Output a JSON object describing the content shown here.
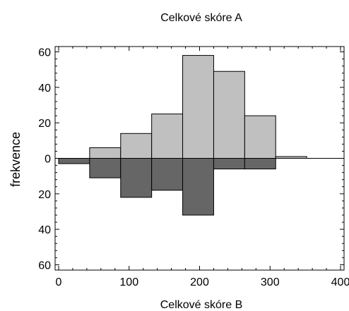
{
  "chart_data": {
    "type": "bar",
    "title": "Celkové skóre A",
    "xlabel": "Celkové skóre B",
    "ylabel": "frekvence",
    "xlim": [
      -5,
      405
    ],
    "ylim": [
      -63,
      63
    ],
    "x_ticks": [
      0,
      100,
      200,
      300,
      400
    ],
    "y_ticks": [
      {
        "value": 60,
        "label": "60"
      },
      {
        "value": 40,
        "label": "40"
      },
      {
        "value": 20,
        "label": "20"
      },
      {
        "value": 0,
        "label": "0"
      },
      {
        "value": -20,
        "label": "20"
      },
      {
        "value": -40,
        "label": "40"
      },
      {
        "value": -60,
        "label": "60"
      }
    ],
    "bin_edges": [
      0,
      44,
      88,
      132,
      176,
      220,
      264,
      308,
      352
    ],
    "series": [
      {
        "name": "Celkové skóre A",
        "direction": "up",
        "color": "#c0c0c0",
        "values": [
          0,
          6,
          14,
          25,
          58,
          49,
          24,
          1
        ]
      },
      {
        "name": "Celkové skóre B",
        "direction": "down",
        "color": "#666666",
        "values": [
          3,
          11,
          22,
          18,
          32,
          6,
          6,
          0
        ]
      }
    ],
    "baseline_line_end": 400,
    "grid": false,
    "legend": "none"
  }
}
